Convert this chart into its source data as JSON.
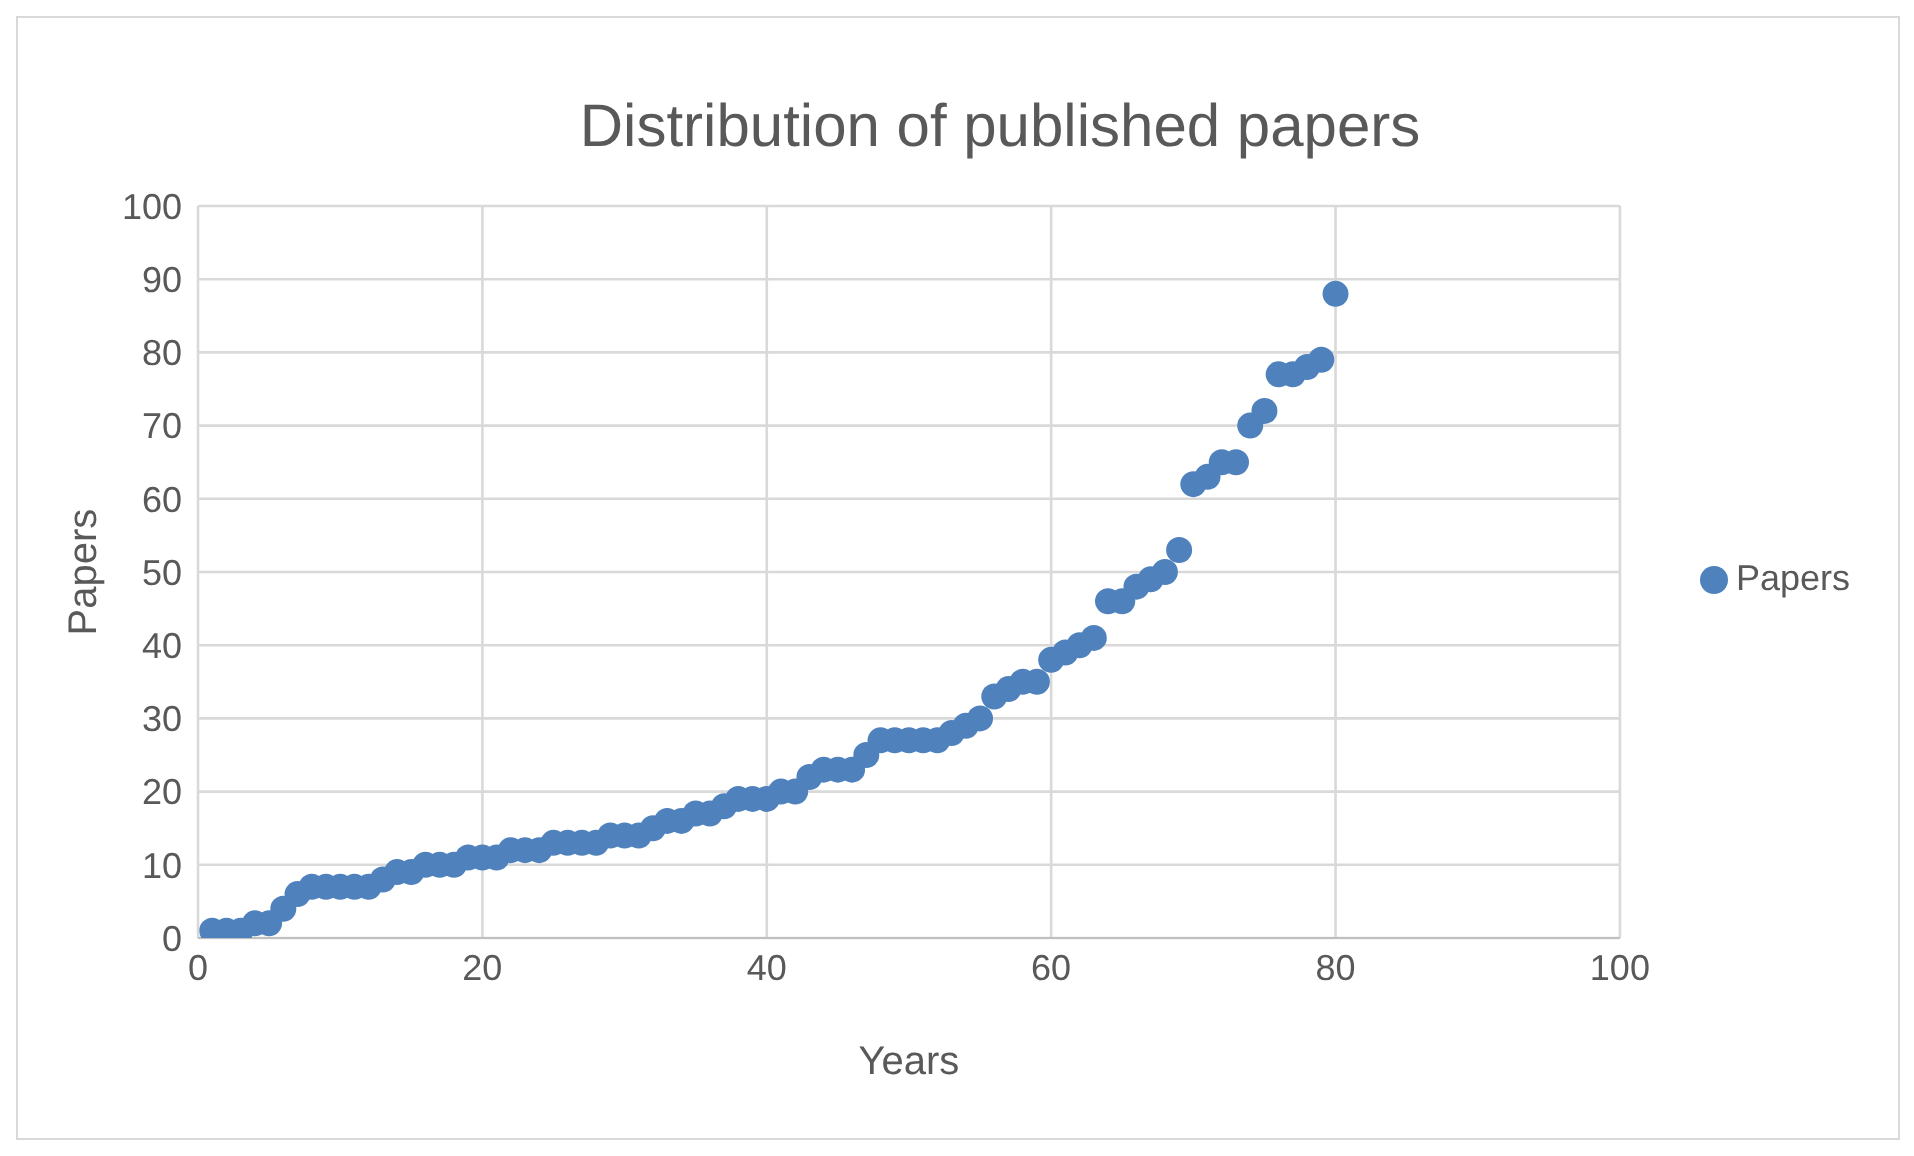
{
  "chart_data": {
    "type": "scatter",
    "title": "Distribution of published papers",
    "xlabel": "Years",
    "ylabel": "Papers",
    "x": [
      1,
      2,
      3,
      4,
      5,
      6,
      7,
      8,
      9,
      10,
      11,
      12,
      13,
      14,
      15,
      16,
      17,
      18,
      19,
      20,
      21,
      22,
      23,
      24,
      25,
      26,
      27,
      28,
      29,
      30,
      31,
      32,
      33,
      34,
      35,
      36,
      37,
      38,
      39,
      40,
      41,
      42,
      43,
      44,
      45,
      46,
      47,
      48,
      49,
      50,
      51,
      52,
      53,
      54,
      55,
      56,
      57,
      58,
      59,
      60,
      61,
      62,
      63,
      64,
      65,
      66,
      67,
      68,
      69,
      70,
      71,
      72,
      73,
      74,
      75,
      76,
      77,
      78,
      79,
      80
    ],
    "series": [
      {
        "name": "Papers",
        "color": "#4f81bd",
        "values": [
          1,
          1,
          1,
          2,
          2,
          4,
          6,
          7,
          7,
          7,
          7,
          7,
          8,
          9,
          9,
          10,
          10,
          10,
          11,
          11,
          11,
          12,
          12,
          12,
          13,
          13,
          13,
          13,
          14,
          14,
          14,
          15,
          16,
          16,
          17,
          17,
          18,
          19,
          19,
          19,
          20,
          20,
          22,
          23,
          23,
          23,
          25,
          27,
          27,
          27,
          27,
          27,
          28,
          29,
          30,
          33,
          34,
          35,
          35,
          38,
          39,
          40,
          41,
          46,
          46,
          48,
          49,
          50,
          53,
          62,
          63,
          65,
          65,
          70,
          72,
          77,
          77,
          78,
          79,
          88
        ]
      }
    ],
    "xlim": [
      0,
      100
    ],
    "xticks": [
      0,
      20,
      40,
      60,
      80,
      100
    ],
    "ylim": [
      0,
      100
    ],
    "yticks": [
      0,
      10,
      20,
      30,
      40,
      50,
      60,
      70,
      80,
      90,
      100
    ],
    "grid": true,
    "legend": "right",
    "marker": "circle"
  }
}
